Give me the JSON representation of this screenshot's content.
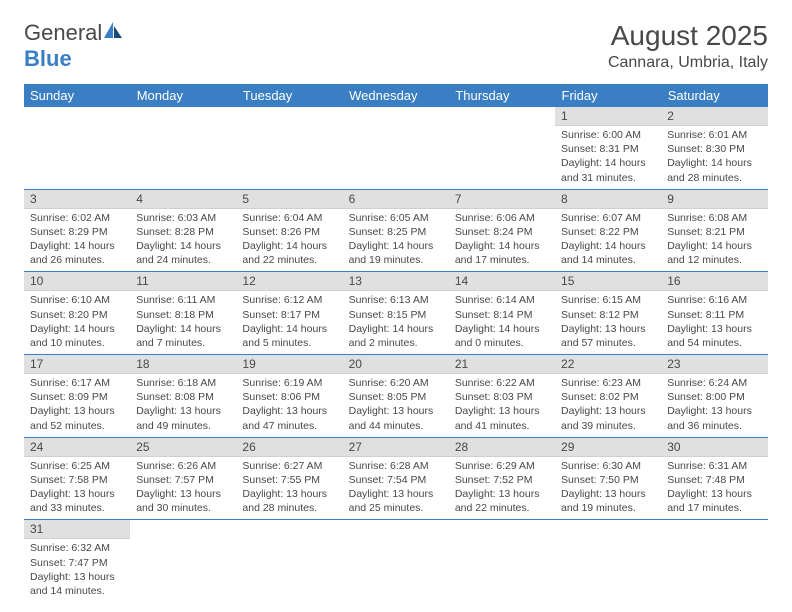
{
  "logo": {
    "brand1": "General",
    "brand2": "Blue"
  },
  "title": "August 2025",
  "location": "Cannara, Umbria, Italy",
  "colors": {
    "accent": "#3a7fc4",
    "text": "#484848",
    "dayHeaderBg": "#e0e0e0",
    "bg": "#ffffff"
  },
  "weekdays": [
    "Sunday",
    "Monday",
    "Tuesday",
    "Wednesday",
    "Thursday",
    "Friday",
    "Saturday"
  ],
  "weeks": [
    [
      null,
      null,
      null,
      null,
      null,
      {
        "n": "1",
        "sunrise": "6:00 AM",
        "sunset": "8:31 PM",
        "daylight": "14 hours and 31 minutes."
      },
      {
        "n": "2",
        "sunrise": "6:01 AM",
        "sunset": "8:30 PM",
        "daylight": "14 hours and 28 minutes."
      }
    ],
    [
      {
        "n": "3",
        "sunrise": "6:02 AM",
        "sunset": "8:29 PM",
        "daylight": "14 hours and 26 minutes."
      },
      {
        "n": "4",
        "sunrise": "6:03 AM",
        "sunset": "8:28 PM",
        "daylight": "14 hours and 24 minutes."
      },
      {
        "n": "5",
        "sunrise": "6:04 AM",
        "sunset": "8:26 PM",
        "daylight": "14 hours and 22 minutes."
      },
      {
        "n": "6",
        "sunrise": "6:05 AM",
        "sunset": "8:25 PM",
        "daylight": "14 hours and 19 minutes."
      },
      {
        "n": "7",
        "sunrise": "6:06 AM",
        "sunset": "8:24 PM",
        "daylight": "14 hours and 17 minutes."
      },
      {
        "n": "8",
        "sunrise": "6:07 AM",
        "sunset": "8:22 PM",
        "daylight": "14 hours and 14 minutes."
      },
      {
        "n": "9",
        "sunrise": "6:08 AM",
        "sunset": "8:21 PM",
        "daylight": "14 hours and 12 minutes."
      }
    ],
    [
      {
        "n": "10",
        "sunrise": "6:10 AM",
        "sunset": "8:20 PM",
        "daylight": "14 hours and 10 minutes."
      },
      {
        "n": "11",
        "sunrise": "6:11 AM",
        "sunset": "8:18 PM",
        "daylight": "14 hours and 7 minutes."
      },
      {
        "n": "12",
        "sunrise": "6:12 AM",
        "sunset": "8:17 PM",
        "daylight": "14 hours and 5 minutes."
      },
      {
        "n": "13",
        "sunrise": "6:13 AM",
        "sunset": "8:15 PM",
        "daylight": "14 hours and 2 minutes."
      },
      {
        "n": "14",
        "sunrise": "6:14 AM",
        "sunset": "8:14 PM",
        "daylight": "14 hours and 0 minutes."
      },
      {
        "n": "15",
        "sunrise": "6:15 AM",
        "sunset": "8:12 PM",
        "daylight": "13 hours and 57 minutes."
      },
      {
        "n": "16",
        "sunrise": "6:16 AM",
        "sunset": "8:11 PM",
        "daylight": "13 hours and 54 minutes."
      }
    ],
    [
      {
        "n": "17",
        "sunrise": "6:17 AM",
        "sunset": "8:09 PM",
        "daylight": "13 hours and 52 minutes."
      },
      {
        "n": "18",
        "sunrise": "6:18 AM",
        "sunset": "8:08 PM",
        "daylight": "13 hours and 49 minutes."
      },
      {
        "n": "19",
        "sunrise": "6:19 AM",
        "sunset": "8:06 PM",
        "daylight": "13 hours and 47 minutes."
      },
      {
        "n": "20",
        "sunrise": "6:20 AM",
        "sunset": "8:05 PM",
        "daylight": "13 hours and 44 minutes."
      },
      {
        "n": "21",
        "sunrise": "6:22 AM",
        "sunset": "8:03 PM",
        "daylight": "13 hours and 41 minutes."
      },
      {
        "n": "22",
        "sunrise": "6:23 AM",
        "sunset": "8:02 PM",
        "daylight": "13 hours and 39 minutes."
      },
      {
        "n": "23",
        "sunrise": "6:24 AM",
        "sunset": "8:00 PM",
        "daylight": "13 hours and 36 minutes."
      }
    ],
    [
      {
        "n": "24",
        "sunrise": "6:25 AM",
        "sunset": "7:58 PM",
        "daylight": "13 hours and 33 minutes."
      },
      {
        "n": "25",
        "sunrise": "6:26 AM",
        "sunset": "7:57 PM",
        "daylight": "13 hours and 30 minutes."
      },
      {
        "n": "26",
        "sunrise": "6:27 AM",
        "sunset": "7:55 PM",
        "daylight": "13 hours and 28 minutes."
      },
      {
        "n": "27",
        "sunrise": "6:28 AM",
        "sunset": "7:54 PM",
        "daylight": "13 hours and 25 minutes."
      },
      {
        "n": "28",
        "sunrise": "6:29 AM",
        "sunset": "7:52 PM",
        "daylight": "13 hours and 22 minutes."
      },
      {
        "n": "29",
        "sunrise": "6:30 AM",
        "sunset": "7:50 PM",
        "daylight": "13 hours and 19 minutes."
      },
      {
        "n": "30",
        "sunrise": "6:31 AM",
        "sunset": "7:48 PM",
        "daylight": "13 hours and 17 minutes."
      }
    ],
    [
      {
        "n": "31",
        "sunrise": "6:32 AM",
        "sunset": "7:47 PM",
        "daylight": "13 hours and 14 minutes."
      },
      null,
      null,
      null,
      null,
      null,
      null
    ]
  ],
  "labels": {
    "sunrise": "Sunrise: ",
    "sunset": "Sunset: ",
    "daylight": "Daylight: "
  }
}
